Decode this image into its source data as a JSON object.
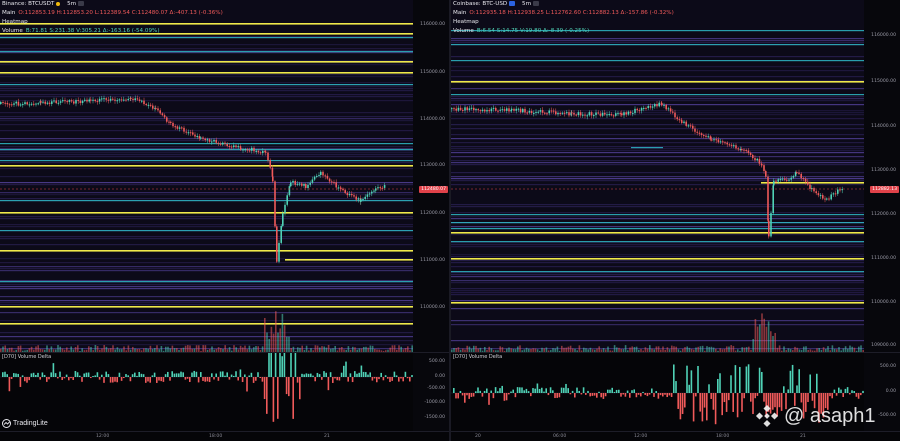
{
  "left_panel": {
    "symbol": "Binance: BTCUSDT",
    "timeframe": "5m",
    "main_line": {
      "label": "Main",
      "values": "O:112853.19 H:112853.20 L:112389.54 C:112480.07 Δ:-407.13 (-0.36%)"
    },
    "heatmap_label": "Heatmap",
    "volume_line": {
      "label": "Volume",
      "values": "B:71.81 S:231.38 V:305.21 Δ:-163.16 (-54.09%)"
    },
    "price_ticks": [
      "116000.00",
      "115000.00",
      "114000.00",
      "113000.00",
      "112000.00",
      "111000.00",
      "110000.00"
    ],
    "current_price": "112480.07",
    "sub_title": "[D70] Volume Delta",
    "sub_ticks": [
      "500.00",
      "0.00",
      "-500.00",
      "-1000.00",
      "-1500.00"
    ],
    "time_ticks": [
      "12:00",
      "18:00",
      "21"
    ],
    "logo_text": "TradingLite"
  },
  "right_panel": {
    "symbol": "Coinbase: BTC-USD",
    "timeframe": "5m",
    "main_line": {
      "label": "Main",
      "values": "O:112935.18 H:112938.25 L:112762.60 C:112882.13 Δ:-157.86 (-0.32%)"
    },
    "heatmap_label": "Heatmap",
    "volume_line": {
      "label": "Volume",
      "values": "B:6.54 S:14.75 V:19.80 Δ:-8.39 (-0.25%)"
    },
    "price_ticks": [
      "116000.00",
      "115000.00",
      "114000.00",
      "113000.00",
      "112000.00",
      "111000.00",
      "110000.00",
      "109000.00"
    ],
    "current_price": "112882.13",
    "sub_title": "[D70] Volume Delta",
    "sub_ticks": [
      "500.00",
      "0.00",
      "-500.00"
    ],
    "time_ticks": [
      "20",
      "06:00",
      "12:00",
      "18:00",
      "21"
    ]
  },
  "watermark": {
    "handle": "@ asaph1",
    "icon": "binance-diamond-icon"
  },
  "colors": {
    "background": "#0b0a13",
    "heat_line": "#f0e94a",
    "cyan_line": "#2fb8c7",
    "candle_up": "#4fd2b6",
    "candle_down": "#f05a5a",
    "price_tag": "#e0424a"
  }
}
